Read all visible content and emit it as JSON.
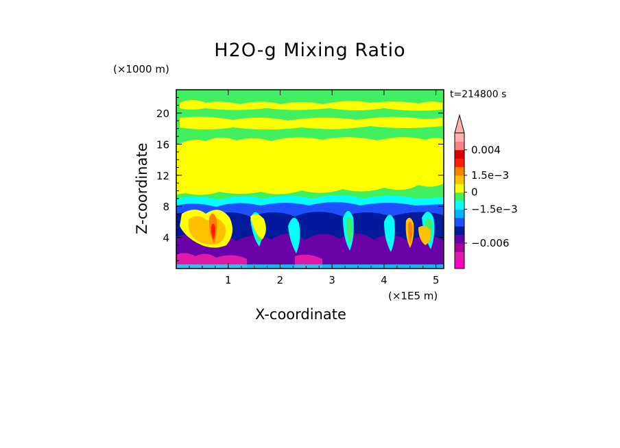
{
  "chart_data": {
    "type": "heatmap",
    "title": "H2O-g Mixing Ratio",
    "xlabel": "X-coordinate",
    "ylabel": "Z-coordinate",
    "x_unit": "(×1E5 m)",
    "y_unit": "(×1000 m)",
    "time_label": "t=214800 s",
    "xlim": [
      0,
      5.15
    ],
    "ylim": [
      0,
      23
    ],
    "x_ticks": [
      {
        "value": 1,
        "label": "1"
      },
      {
        "value": 2,
        "label": "2"
      },
      {
        "value": 3,
        "label": "3"
      },
      {
        "value": 4,
        "label": "4"
      },
      {
        "value": 5,
        "label": "5"
      }
    ],
    "y_ticks": [
      {
        "value": 4,
        "label": "4"
      },
      {
        "value": 8,
        "label": "8"
      },
      {
        "value": 12,
        "label": "12"
      },
      {
        "value": 16,
        "label": "16"
      },
      {
        "value": 20,
        "label": "20"
      }
    ],
    "colorbar": {
      "levels": [
        "#ff00c0",
        "#e01aa8",
        "#a8009a",
        "#6a00a8",
        "#001a9c",
        "#1e50ff",
        "#00b4ff",
        "#00ffff",
        "#40f060",
        "#ffff00",
        "#ffc000",
        "#ff8000",
        "#ff2000",
        "#d80000",
        "#ff8080",
        "#ffb0b0"
      ],
      "labels": [
        {
          "level": 14,
          "text": "0.004"
        },
        {
          "level": 11,
          "text": "1.5e−3"
        },
        {
          "level": 9,
          "text": "0"
        },
        {
          "level": 7,
          "text": "−1.5e−3"
        },
        {
          "level": 3,
          "text": "−0.006"
        }
      ]
    },
    "bands": [
      {
        "color": "#40f060",
        "name": "upper-green"
      },
      {
        "color": "#ffff00",
        "name": "yellow-core"
      },
      {
        "color": "#00ffff",
        "name": "cyan"
      },
      {
        "color": "#001a9c",
        "name": "dark-blue"
      },
      {
        "color": "#6a00a8",
        "name": "purple"
      },
      {
        "color": "#ffc000",
        "name": "orange-plumes"
      }
    ]
  }
}
